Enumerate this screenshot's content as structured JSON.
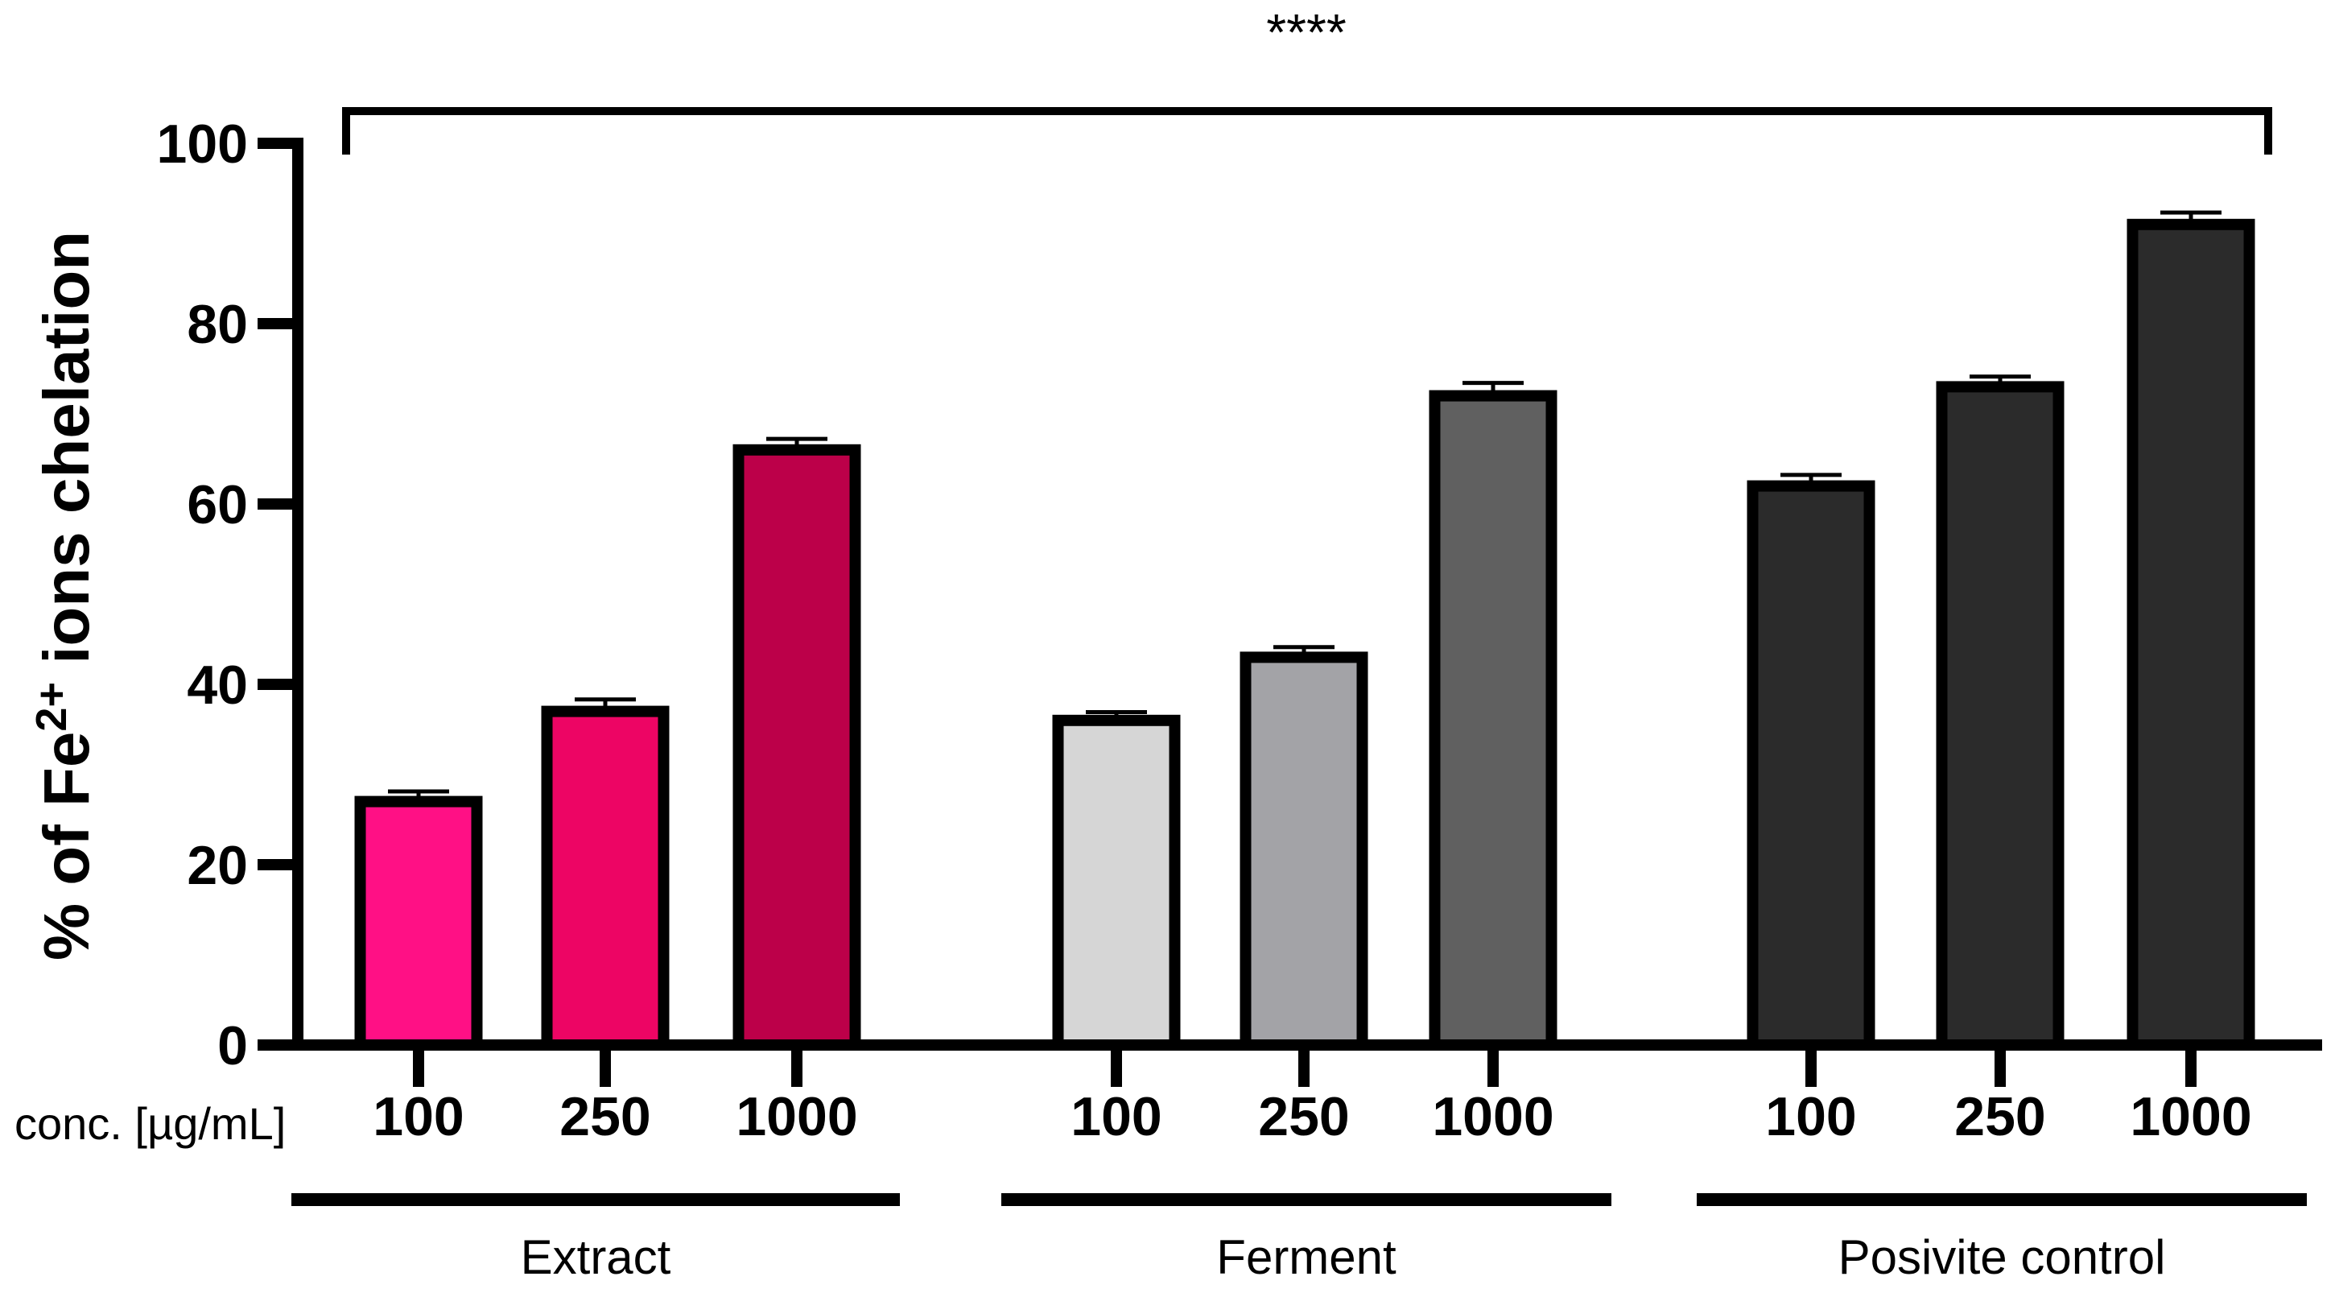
{
  "chart_data": {
    "type": "bar",
    "ylabel_parts": [
      "% of Fe",
      "2+",
      " ions chelation"
    ],
    "xlabel": "conc. [µg/mL]",
    "ylim": [
      0,
      100
    ],
    "yticks": [
      0,
      20,
      40,
      60,
      80,
      100
    ],
    "significance": "****",
    "groups": [
      {
        "name": "Extract",
        "categories": [
          "100",
          "250",
          "1000"
        ],
        "values": [
          27,
          37,
          66
        ],
        "errors": [
          0.5,
          0.7,
          0.6
        ],
        "colors": [
          "#ff1085",
          "#ed0564",
          "#bc0049"
        ]
      },
      {
        "name": "Ferment",
        "categories": [
          "100",
          "250",
          "1000"
        ],
        "values": [
          36,
          43,
          72
        ],
        "errors": [
          0.3,
          0.5,
          0.8
        ],
        "colors": [
          "#d6d6d6",
          "#a3a3a7",
          "#606060"
        ]
      },
      {
        "name": "Posivite control",
        "categories": [
          "100",
          "250",
          "1000"
        ],
        "values": [
          62,
          73,
          91
        ],
        "errors": [
          0.6,
          0.5,
          0.7
        ],
        "colors": [
          "#2b2b2b",
          "#2b2b2b",
          "#2b2b2b"
        ]
      }
    ]
  }
}
